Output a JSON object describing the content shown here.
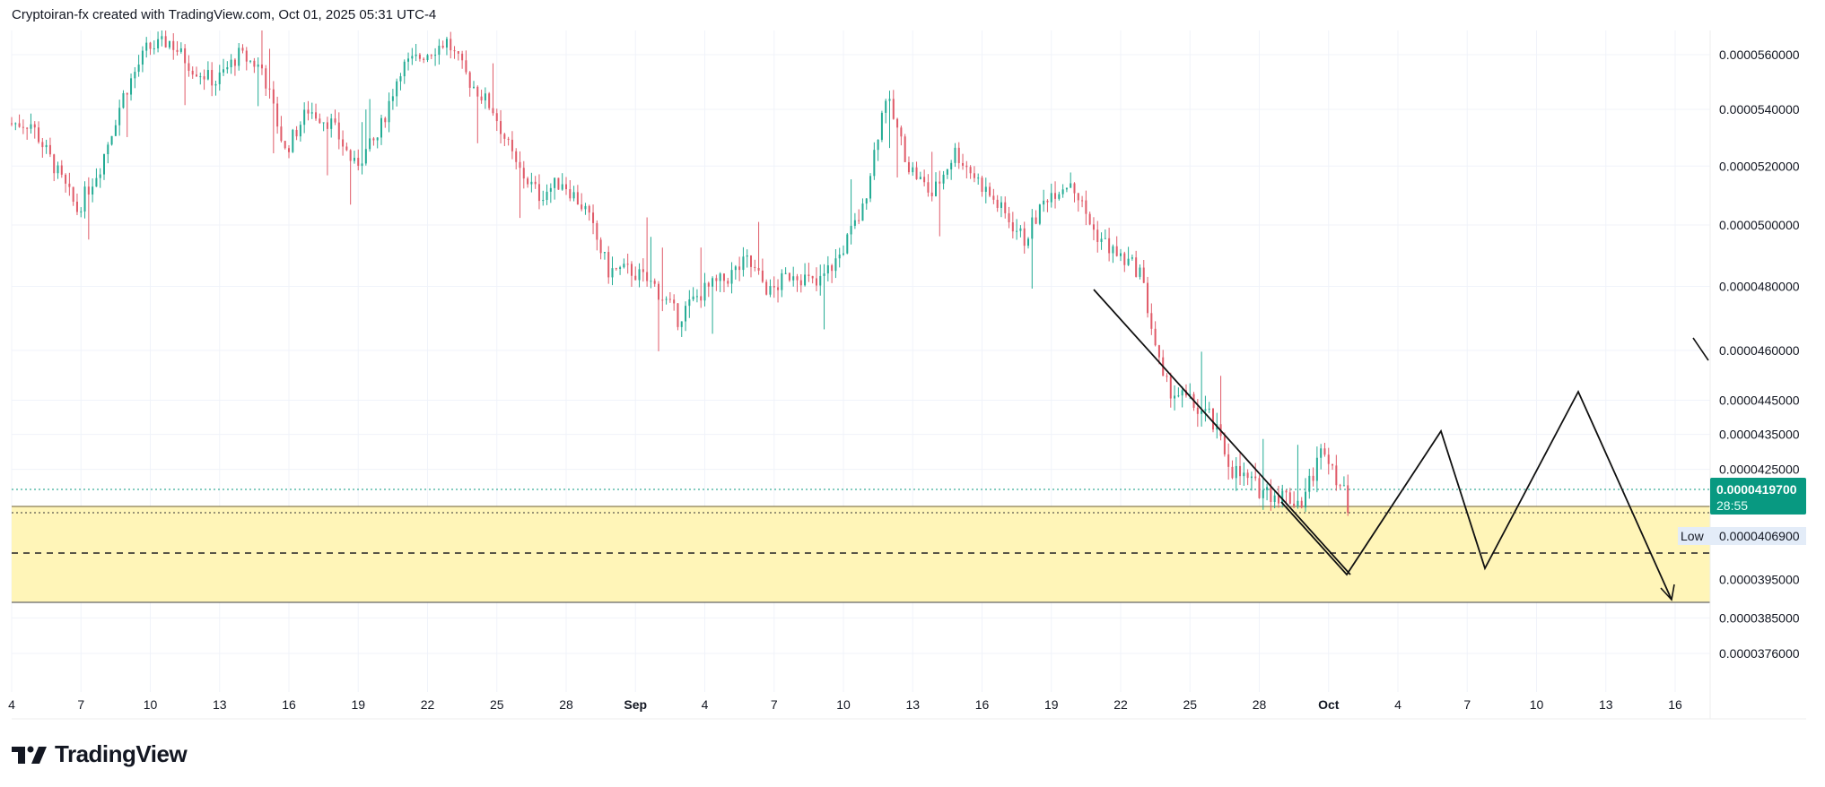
{
  "header": {
    "attribution": "Cryptoiran-fx created with TradingView.com, Oct 01, 2025 05:31 UTC-4"
  },
  "branding": {
    "logo_text": "TradingView"
  },
  "colors": {
    "up": "#22ab94",
    "down": "#e05a68",
    "zone": "#fff5b8",
    "price_badge": "#089981",
    "low_badge": "#e3ecf8"
  },
  "price_badge": {
    "price": "0.0000419700",
    "countdown": "28:55"
  },
  "low_badge": {
    "label": "Low",
    "price": "0.0000406900"
  },
  "chart_data": {
    "type": "candlestick",
    "title": "",
    "xlabel": "",
    "ylabel": "",
    "scale": "log",
    "x_ticks": [
      "4",
      "7",
      "10",
      "13",
      "16",
      "19",
      "22",
      "25",
      "28",
      "Sep",
      "4",
      "7",
      "10",
      "13",
      "16",
      "19",
      "22",
      "25",
      "28",
      "Oct",
      "4",
      "7",
      "10",
      "13",
      "16"
    ],
    "y_ticks": [
      "0.0000560000",
      "0.0000540000",
      "0.0000520000",
      "0.0000500000",
      "0.0000480000",
      "0.0000460000",
      "0.0000445000",
      "0.0000435000",
      "0.0000425000",
      "0.0000395000",
      "0.0000385000",
      "0.0000376000"
    ],
    "y_tick_values": [
      560,
      540,
      520,
      500,
      480,
      460,
      445,
      435,
      425,
      395,
      385,
      376
    ],
    "value_unit": "x 1e-7",
    "start_date": "Aug 4",
    "daily_close": [
      535,
      520,
      505,
      520,
      545,
      562,
      565,
      555,
      550,
      560,
      555,
      525,
      540,
      535,
      520,
      530,
      555,
      560,
      565,
      550,
      540,
      520,
      510,
      515,
      505,
      485,
      485,
      480,
      470,
      478,
      482,
      488,
      478,
      485,
      480,
      490,
      505,
      545,
      520,
      510,
      525,
      515,
      505,
      495,
      510,
      515,
      498,
      490,
      485,
      450,
      445,
      440,
      425,
      420,
      418,
      416,
      432,
      415,
      419.7
    ],
    "current_price": 419.7,
    "low": 406.9,
    "support_zone": [
      389,
      411
    ],
    "support_mid_dashed": 400.5
  }
}
